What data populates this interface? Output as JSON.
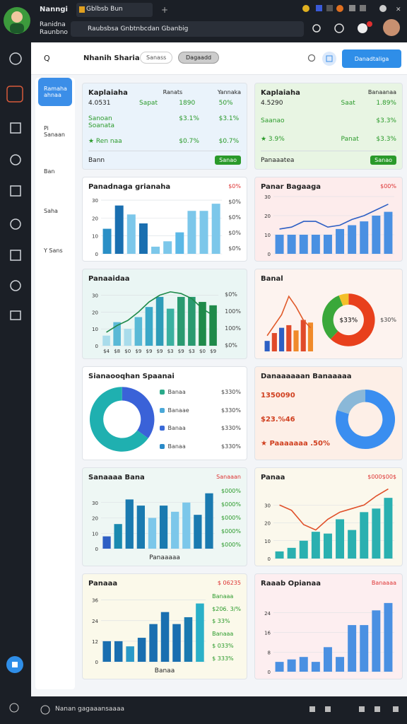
{
  "topbar": {
    "profile_name": "Nanngi",
    "profile_sub": "Ranidna Raunbno",
    "tab": "Gblbsb Bun",
    "address": "Raubsbsa Gnbtnbcdan Gbanbig"
  },
  "toolbar": {
    "search": "Q",
    "title": "Nhanih Sharia",
    "filter": "Sanass",
    "chip": "Dagaadd",
    "action": "Danadtaliga"
  },
  "nav": [
    "Ramaha ahnaa",
    "Pi Sanaan",
    "Ban",
    "Saha",
    "Y Sans"
  ],
  "footer": "Nanan gagaaansaaaa",
  "cards": [
    {
      "title": "Kaplaiaha",
      "heads": [
        "Ranats",
        "Yannaka"
      ],
      "rows": [
        [
          "4.0531",
          "Sapat",
          "1890",
          "50%"
        ],
        [
          "Sanoan Soanata",
          "$3.1%",
          "$3.1%"
        ],
        [
          "★ Ren naa",
          "$0.7%",
          "$0.7%"
        ]
      ],
      "footer": "Bann",
      "badge": "Sanao"
    },
    {
      "title": "Kaplaiaha",
      "heads": [
        "Banaanaa"
      ],
      "rows": [
        [
          "4.5290",
          "Saat",
          "1.89%"
        ],
        [
          "Saanao",
          "$3.3%"
        ],
        [
          "★ 3.9%",
          "Panat",
          "$3.3%"
        ]
      ],
      "footer": "Panaaatea",
      "badge": "Sanao"
    },
    {
      "title": "Panadnaga grianaha",
      "note": "$0%",
      "side": [
        "$0%",
        "$0%",
        "$0%",
        "$0%"
      ],
      "charts": [
        {
          "type": "bar",
          "ylim": [
            0,
            32
          ],
          "yticks": [
            0,
            10,
            20,
            30
          ],
          "values": [
            14,
            27,
            22,
            17,
            4,
            7,
            12,
            24,
            24,
            28
          ],
          "colors": [
            "#2a8fc6",
            "#1a6fb0",
            "#7cc7ea",
            "#1a6fb0",
            "#7cc7ea",
            "#7cc7ea",
            "#5bb8e6",
            "#7cc7ea",
            "#7cc7ea",
            "#7cc7ea"
          ]
        }
      ]
    },
    {
      "title": "Panar Bagaaga",
      "note": "$00%",
      "charts": [
        {
          "type": "bar",
          "ylim": [
            0,
            30
          ],
          "yticks": [
            0,
            10,
            20,
            30
          ],
          "values": [
            10,
            10,
            10,
            10,
            10,
            13,
            15,
            17,
            20,
            22
          ],
          "color": "#4a90e2",
          "line": [
            13,
            14,
            17,
            17,
            14,
            15,
            18,
            20,
            23,
            26
          ],
          "line_color": "#2d5fc4"
        }
      ]
    },
    {
      "title": "Panaaidaa",
      "side": [
        "$0%",
        "100%",
        "100%",
        "$0%"
      ],
      "charts": [
        {
          "type": "bar",
          "ylim": [
            0,
            34
          ],
          "yticks": [
            0,
            10,
            20,
            30
          ],
          "categories": [
            "$4",
            "$8",
            "$0",
            "$9",
            "$9",
            "$9",
            "$3",
            "$9",
            "$3",
            "$0",
            "$9"
          ],
          "values": [
            6,
            14,
            10,
            17,
            23,
            29,
            22,
            29,
            29,
            26,
            24
          ],
          "colors": [
            "#a9dceb",
            "#5ab9d6",
            "#a9dceb",
            "#5ab9d6",
            "#3aa8c8",
            "#2e9cb8",
            "#3ab0a0",
            "#2a9a70",
            "#2a9a70",
            "#1f8a4a",
            "#1f8a4a"
          ],
          "line": [
            8,
            12,
            15,
            20,
            26,
            30,
            32,
            31,
            28,
            22,
            18
          ],
          "line_color": "#1f8a4a"
        }
      ]
    },
    {
      "title": "Banal",
      "side": [
        "$30%"
      ],
      "charts": [
        {
          "type": "bar",
          "ylim": [
            0,
            24
          ],
          "values": [
            4,
            7,
            9,
            10,
            8,
            12,
            11
          ],
          "colors": [
            "#2d5fc4",
            "#e04a2a",
            "#2d5fc4",
            "#e04a2a",
            "#f08a2a",
            "#e04a2a",
            "#f08a2a"
          ],
          "line": [
            6,
            10,
            14,
            21,
            17,
            12,
            9
          ],
          "line_color": "#e05a2a"
        },
        {
          "type": "donut",
          "values": [
            62,
            32,
            6
          ],
          "colors": [
            "#e8401c",
            "#3aa83a",
            "#f3c02a"
          ],
          "center": "$33%"
        }
      ]
    },
    {
      "title": "Sianaooqhan Spaanai",
      "legend": [
        {
          "name": "Banaa",
          "value": "$330%",
          "color": "#2aaa8a"
        },
        {
          "name": "Banaae",
          "value": "$330%",
          "color": "#4aa8d8"
        },
        {
          "name": "Banaa",
          "value": "$330%",
          "color": "#3a6ad8"
        },
        {
          "name": "Banaa",
          "value": "$330%",
          "color": "#2a8ac8"
        }
      ],
      "charts": [
        {
          "type": "donut",
          "values": [
            35,
            65
          ],
          "colors": [
            "#3a62d8",
            "#1fb0b0"
          ]
        }
      ]
    },
    {
      "title": "Danaaaaaan Banaaaaa",
      "rows": [
        [
          "1350090"
        ],
        [
          "$23.%46"
        ],
        [
          "★ Paaaaaaa .50%"
        ]
      ],
      "charts": [
        {
          "type": "donut",
          "values": [
            80,
            20
          ],
          "colors": [
            "#3a8ef0",
            "#8ab8d8"
          ]
        }
      ]
    },
    {
      "title": "Sanaaaa Bana",
      "note": "Sanaaan",
      "side": [
        "$000%",
        "$000%",
        "$000%",
        "$000%",
        "$000%"
      ],
      "charts": [
        {
          "type": "bar",
          "ylim": [
            0,
            40
          ],
          "yticks": [
            0,
            10,
            20,
            30
          ],
          "values": [
            8,
            16,
            32,
            28,
            20,
            28,
            24,
            30,
            22,
            36
          ],
          "colors": [
            "#2d5fc4",
            "#1a8ab0",
            "#1a7ab0",
            "#1a7ab0",
            "#7cc7ea",
            "#1a7ab0",
            "#7cc7ea",
            "#7cc7ea",
            "#1a7ab0",
            "#1a7ab0"
          ]
        }
      ],
      "footer": "Panaaaaa"
    },
    {
      "title": "Panaa",
      "note": "$000$00$",
      "charts": [
        {
          "type": "bar",
          "ylim": [
            0,
            40
          ],
          "yticks": [
            0,
            10,
            20,
            30
          ],
          "values": [
            4,
            6,
            10,
            15,
            14,
            22,
            16,
            26,
            28,
            34
          ],
          "color": "#2ab0b0",
          "line": [
            30,
            27,
            19,
            16,
            22,
            26,
            28,
            30,
            35,
            39
          ],
          "line_color": "#e0502a"
        }
      ]
    },
    {
      "title": "Panaaa",
      "note": "$ 06235",
      "side": [
        "Banaaa",
        "$206. 3/%",
        "$ 33%",
        "Banaaa",
        "$ 033%",
        "$ 333%"
      ],
      "charts": [
        {
          "type": "bar",
          "ylim": [
            0,
            40
          ],
          "yticks": [
            0,
            12,
            24,
            36
          ],
          "values": [
            12,
            12,
            9,
            14,
            22,
            29,
            22,
            26,
            34
          ],
          "colors": [
            "#1a6fb0",
            "#1a6fb0",
            "#2a9ac8",
            "#1a6fb0",
            "#1a6fb0",
            "#1a6fb0",
            "#1a6fb0",
            "#1a7ab0",
            "#2ab0c8"
          ]
        }
      ],
      "footer": "Banaa"
    },
    {
      "title": "Raaab Opianaa",
      "note": "Banaaaa",
      "charts": [
        {
          "type": "bar",
          "ylim": [
            0,
            32
          ],
          "yticks": [
            0,
            8,
            16,
            24
          ],
          "values": [
            4,
            5,
            6,
            4,
            10,
            6,
            19,
            19,
            25,
            28
          ],
          "color": "#4a90e2"
        }
      ]
    }
  ]
}
